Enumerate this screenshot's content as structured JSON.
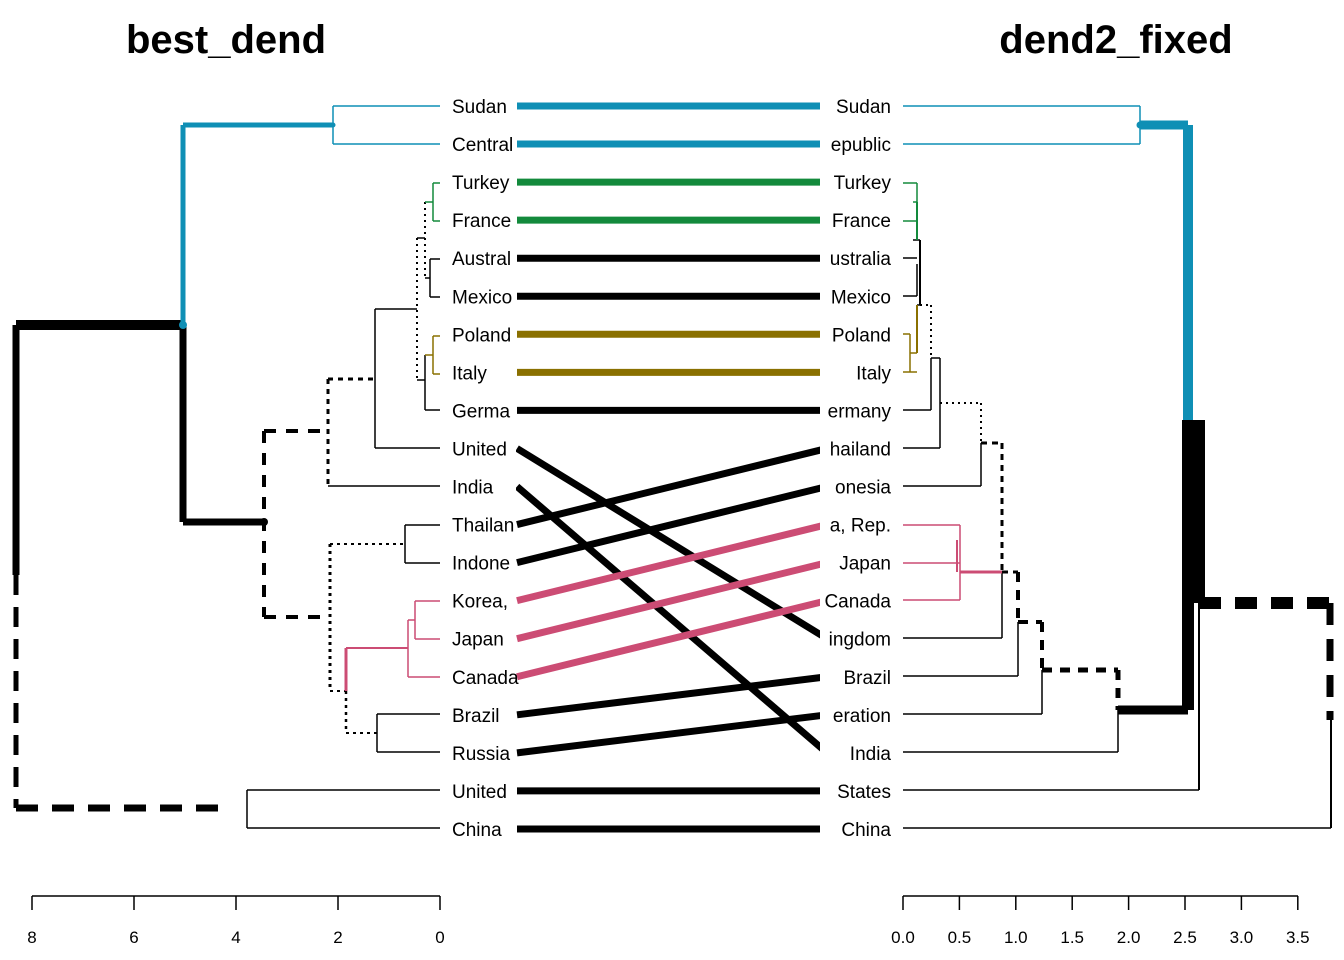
{
  "left_title": "best_dend",
  "right_title": "dend2_fixed",
  "left_labels": [
    "Sudan",
    "Central",
    "Turkey",
    "France",
    "Austral",
    "Mexico",
    "Poland",
    "Italy",
    "Germa",
    "United",
    "India",
    "Thailan",
    "Indone",
    "Korea,",
    "Japan",
    "Canada",
    "Brazil",
    "Russia",
    "United",
    "China"
  ],
  "right_labels": [
    "Sudan",
    "epublic",
    "Turkey",
    "France",
    "ustralia",
    "Mexico",
    "Poland",
    "Italy",
    "ermany",
    "hailand",
    "onesia",
    "a, Rep.",
    "Japan",
    "Canada",
    "ingdom",
    "Brazil",
    "eration",
    "India",
    "States",
    "China"
  ],
  "left_axis_ticks": [
    "8",
    "6",
    "4",
    "2",
    "0"
  ],
  "right_axis_ticks": [
    "0.0",
    "0.5",
    "1.0",
    "1.5",
    "2.0",
    "2.5",
    "3.0",
    "3.5"
  ],
  "colors": {
    "teal": "#0F8FB5",
    "green": "#138A3C",
    "olive": "#8A7000",
    "pink": "#CC4C74",
    "black": "#000000"
  },
  "connections": [
    {
      "from": 0,
      "to": 0,
      "color": "teal"
    },
    {
      "from": 1,
      "to": 1,
      "color": "teal"
    },
    {
      "from": 2,
      "to": 2,
      "color": "green"
    },
    {
      "from": 3,
      "to": 3,
      "color": "green"
    },
    {
      "from": 4,
      "to": 4,
      "color": "black"
    },
    {
      "from": 5,
      "to": 5,
      "color": "black"
    },
    {
      "from": 6,
      "to": 6,
      "color": "olive"
    },
    {
      "from": 7,
      "to": 7,
      "color": "olive"
    },
    {
      "from": 8,
      "to": 8,
      "color": "black"
    },
    {
      "from": 9,
      "to": 14,
      "color": "black"
    },
    {
      "from": 10,
      "to": 17,
      "color": "black"
    },
    {
      "from": 11,
      "to": 9,
      "color": "black"
    },
    {
      "from": 12,
      "to": 10,
      "color": "black"
    },
    {
      "from": 13,
      "to": 11,
      "color": "pink"
    },
    {
      "from": 14,
      "to": 12,
      "color": "pink"
    },
    {
      "from": 15,
      "to": 13,
      "color": "pink"
    },
    {
      "from": 16,
      "to": 15,
      "color": "black"
    },
    {
      "from": 17,
      "to": 16,
      "color": "black"
    },
    {
      "from": 18,
      "to": 18,
      "color": "black"
    },
    {
      "from": 19,
      "to": 19,
      "color": "black"
    }
  ]
}
